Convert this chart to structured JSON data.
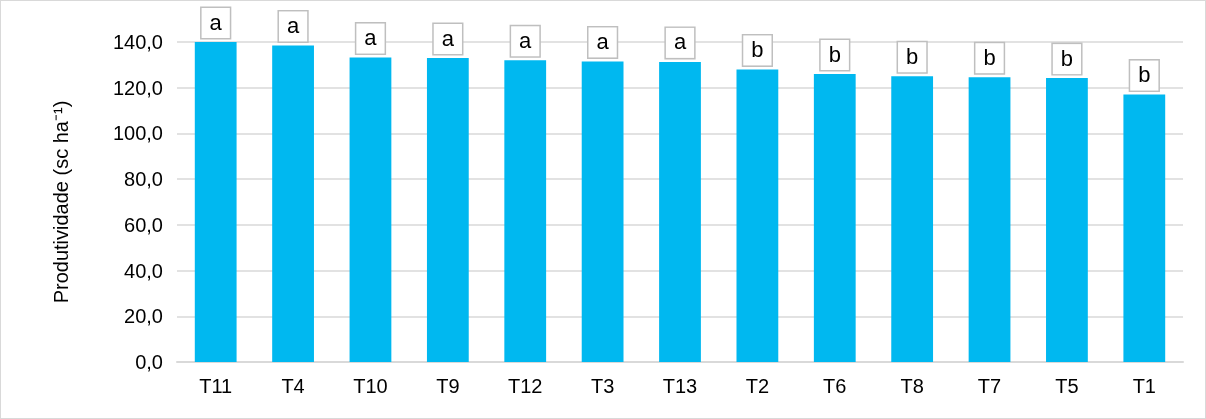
{
  "chart_data": {
    "type": "bar",
    "ylabel": "Produtividade (sc ha⁻¹)",
    "categories": [
      "T11",
      "T4",
      "T10",
      "T9",
      "T12",
      "T3",
      "T13",
      "T2",
      "T6",
      "T8",
      "T7",
      "T5",
      "T1"
    ],
    "values": [
      140,
      138.5,
      133.2,
      133,
      132,
      131.5,
      131.3,
      128,
      126,
      125,
      124.6,
      124.2,
      117
    ],
    "value_labels": [
      "a",
      "a",
      "a",
      "a",
      "a",
      "a",
      "a",
      "b",
      "b",
      "b",
      "b",
      "b",
      "b"
    ],
    "color": "#00b8f0",
    "ylim": [
      0,
      140
    ],
    "yticks": [
      {
        "value": 0,
        "label": "0,0"
      },
      {
        "value": 20,
        "label": "20,0"
      },
      {
        "value": 40,
        "label": "40,0"
      },
      {
        "value": 60,
        "label": "60,0"
      },
      {
        "value": 80,
        "label": "80,0"
      },
      {
        "value": 100,
        "label": "100,0"
      },
      {
        "value": 120,
        "label": "120,0"
      },
      {
        "value": 140,
        "label": "140,0"
      }
    ],
    "grid": "y"
  }
}
